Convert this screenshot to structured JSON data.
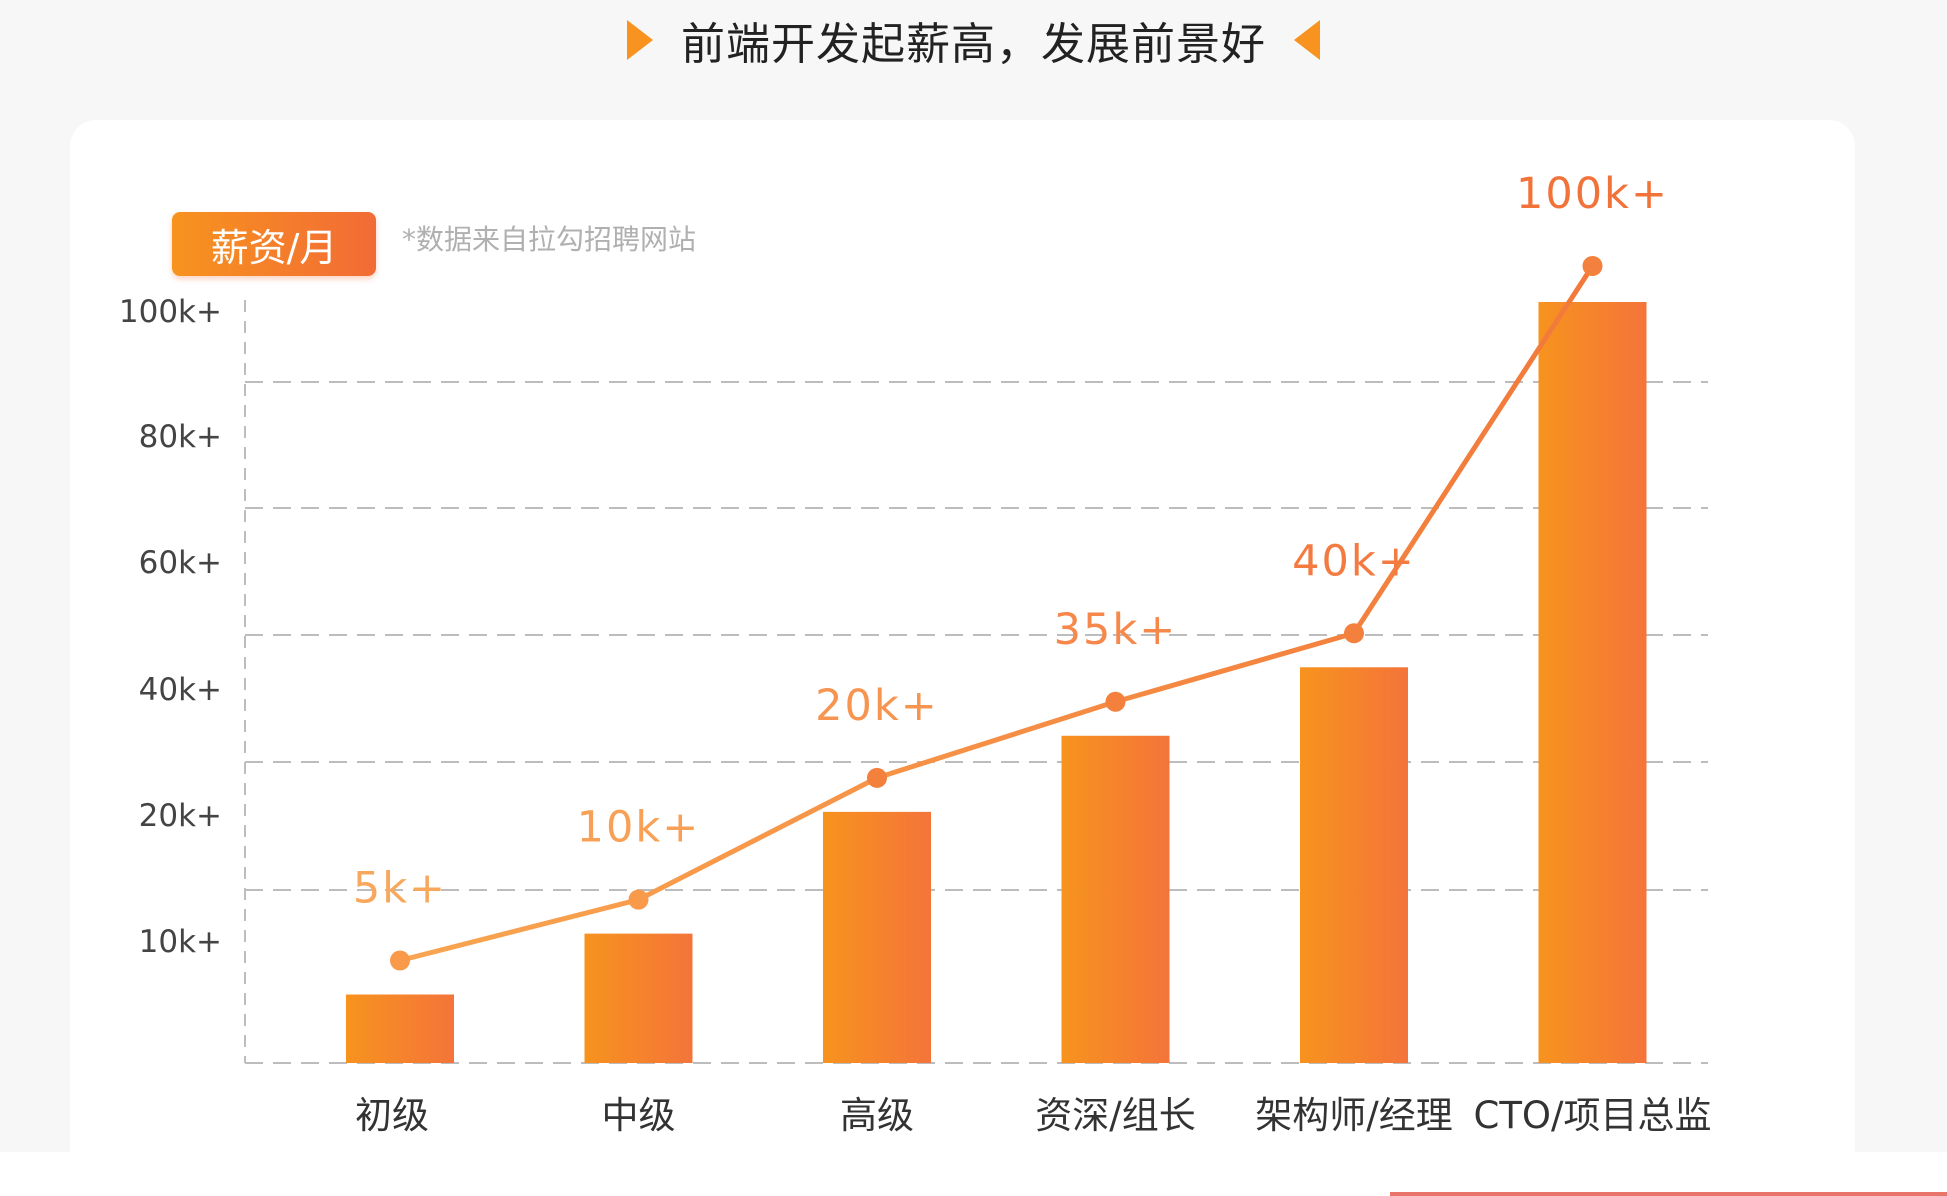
{
  "header": {
    "title": "前端开发起薪高，发展前景好"
  },
  "badge": {
    "text": "薪资/月"
  },
  "note": {
    "text": "*数据来自拉勾招聘网站"
  },
  "colors": {
    "accent_orange": "#f7931e",
    "accent_red_orange": "#f26b36",
    "line_color": "#f7883a",
    "grid_color": "#bdbdbd"
  },
  "chart_data": {
    "type": "bar",
    "categories": [
      "初级",
      "中级",
      "高级",
      "资深/组长",
      "架构师/经理",
      "CTO/项目总监"
    ],
    "values": [
      5,
      10,
      20,
      35,
      40,
      100
    ],
    "data_labels": [
      "5k+",
      "10k+",
      "20k+",
      "35k+",
      "40k+",
      "100k+"
    ],
    "bar_fraction_of_axis_height": [
      0.09,
      0.17,
      0.33,
      0.43,
      0.52,
      1.0
    ],
    "line_overlay": true,
    "y_ticks": [
      {
        "value": 10,
        "label": "10k+"
      },
      {
        "value": 20,
        "label": "20k+"
      },
      {
        "value": 40,
        "label": "40k+"
      },
      {
        "value": 60,
        "label": "60k+"
      },
      {
        "value": 80,
        "label": "80k+"
      },
      {
        "value": 100,
        "label": "100k+"
      }
    ],
    "grid": true,
    "grid_style": "dashed",
    "title": "",
    "xlabel": "",
    "ylabel": "",
    "y_unit_label": "薪资/月"
  }
}
